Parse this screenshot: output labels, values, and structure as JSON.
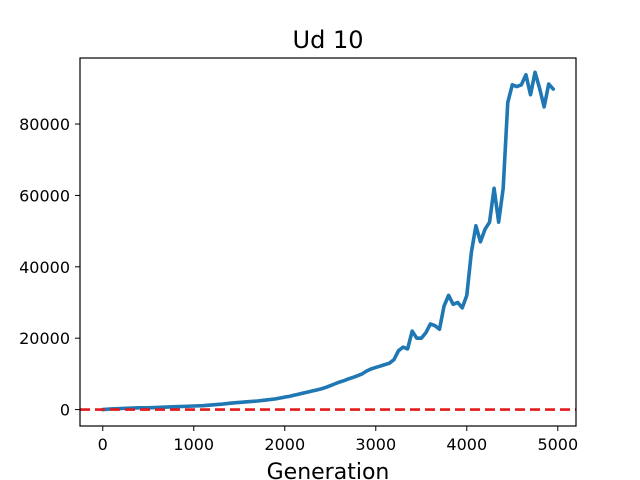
{
  "chart_data": {
    "type": "line",
    "title": "Ud 10",
    "xlabel": "Generation",
    "ylabel": "",
    "xlim": [
      -250,
      5200
    ],
    "ylim": [
      -4600,
      98500
    ],
    "x_ticks": [
      0,
      1000,
      2000,
      3000,
      4000,
      5000
    ],
    "y_ticks": [
      0,
      20000,
      40000,
      60000,
      80000
    ],
    "grid": false,
    "legend": "none",
    "series": [
      {
        "color": "#1f77b4",
        "x": [
          0,
          100,
          200,
          300,
          400,
          500,
          600,
          700,
          800,
          900,
          1000,
          1100,
          1200,
          1300,
          1400,
          1500,
          1600,
          1700,
          1800,
          1900,
          2000,
          2050,
          2100,
          2150,
          2200,
          2250,
          2300,
          2350,
          2400,
          2450,
          2500,
          2550,
          2600,
          2650,
          2700,
          2750,
          2800,
          2850,
          2900,
          2950,
          3000,
          3050,
          3100,
          3150,
          3200,
          3250,
          3300,
          3350,
          3400,
          3450,
          3500,
          3550,
          3600,
          3650,
          3700,
          3750,
          3800,
          3850,
          3900,
          3950,
          4000,
          4050,
          4100,
          4150,
          4200,
          4250,
          4300,
          4350,
          4400,
          4450,
          4500,
          4550,
          4600,
          4650,
          4700,
          4750,
          4800,
          4850,
          4900,
          4950
        ],
        "y": [
          0,
          200,
          300,
          400,
          500,
          500,
          600,
          700,
          800,
          900,
          1000,
          1100,
          1300,
          1500,
          1800,
          2000,
          2200,
          2400,
          2700,
          3000,
          3500,
          3700,
          4000,
          4300,
          4600,
          4900,
          5200,
          5500,
          5800,
          6200,
          6700,
          7200,
          7700,
          8100,
          8600,
          9000,
          9500,
          10000,
          10800,
          11400,
          11800,
          12200,
          12600,
          13000,
          14000,
          16500,
          17500,
          17000,
          22000,
          20000,
          20000,
          21500,
          24000,
          23500,
          22500,
          29000,
          32000,
          29500,
          30000,
          28500,
          32000,
          44000,
          51500,
          47000,
          50500,
          52500,
          62000,
          52500,
          62000,
          86000,
          91000,
          90500,
          91000,
          93800,
          88200,
          94500,
          90000,
          84800,
          91200,
          89800
        ]
      }
    ],
    "reference_line": {
      "y": 0,
      "color": "#e41a1c",
      "style": "dashed"
    }
  }
}
